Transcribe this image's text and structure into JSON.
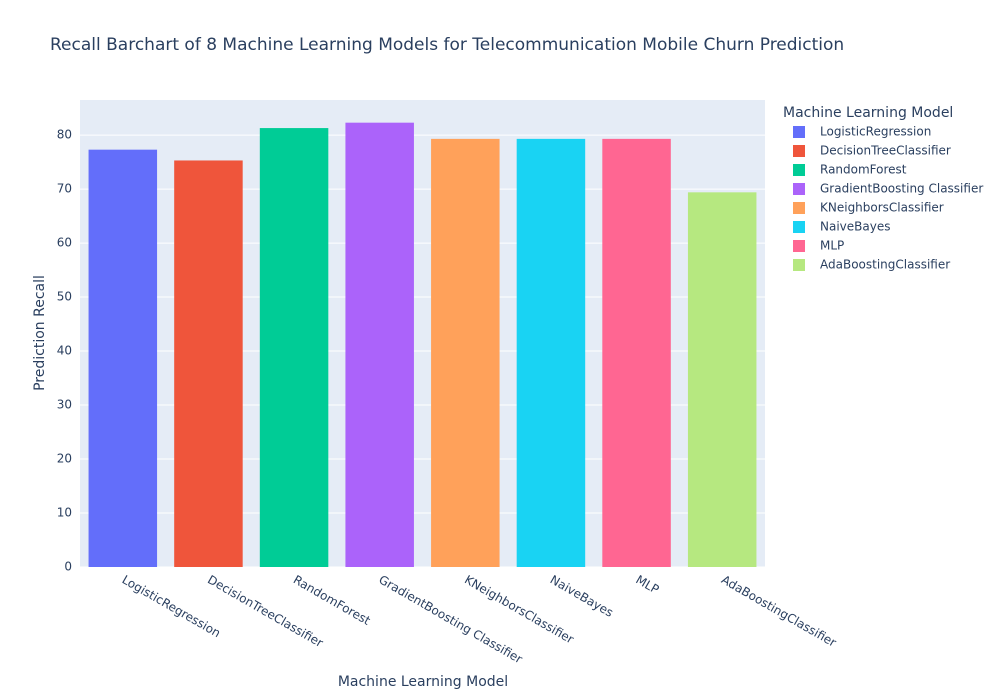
{
  "chart_data": {
    "type": "bar",
    "title": "Recall Barchart of 8 Machine Learning Models for Telecommunication Mobile Churn Prediction",
    "xlabel": "Machine Learning Model",
    "ylabel": "Prediction Recall",
    "legend_title": "Machine Learning Model",
    "categories": [
      "LogisticRegression",
      "DecisionTreeClassifier",
      "RandomForest",
      "GradientBoosting Classifier",
      "KNeighborsClassifier",
      "NaiveBayes",
      "MLP",
      "AdaBoostingClassifier"
    ],
    "values": [
      77.3,
      75.3,
      81.3,
      82.3,
      79.3,
      79.3,
      79.3,
      69.4
    ],
    "colors": [
      "#636efa",
      "#ef553b",
      "#00cc96",
      "#ab63fa",
      "#ffa15a",
      "#19d3f3",
      "#ff6692",
      "#b6e880"
    ],
    "ylim": [
      0,
      86.5
    ],
    "yticks": [
      0,
      10,
      20,
      30,
      40,
      50,
      60,
      70,
      80
    ],
    "grid": true,
    "legend": "right"
  }
}
